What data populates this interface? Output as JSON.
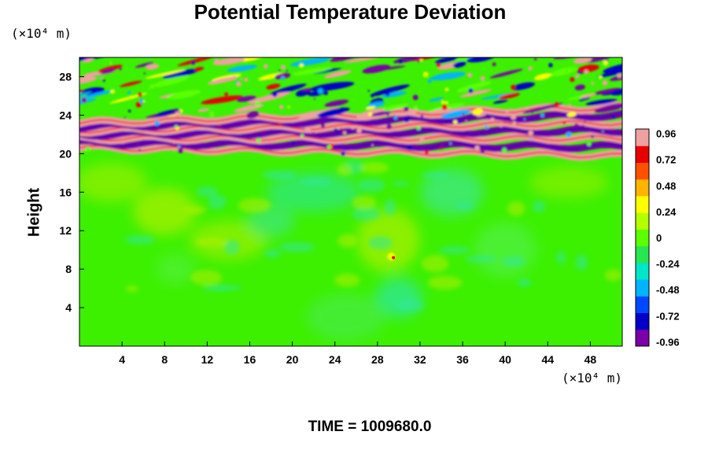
{
  "title": "Potential Temperature Deviation",
  "y_unit": "(×10⁴ m)",
  "x_unit": "(×10⁴ m)",
  "ylabel": "Height",
  "time_label": "TIME = 1009680.0",
  "chart_data": {
    "type": "heatmap",
    "title": "Potential Temperature Deviation",
    "xlabel": "",
    "ylabel": "Height",
    "x_unit": "×10⁴ m",
    "y_unit": "×10⁴ m",
    "xlim": [
      0,
      51
    ],
    "ylim": [
      0,
      30
    ],
    "x_ticks": [
      4,
      8,
      12,
      16,
      20,
      24,
      28,
      32,
      36,
      40,
      44,
      48
    ],
    "y_ticks": [
      4,
      8,
      12,
      16,
      20,
      24,
      28
    ],
    "colorbar": {
      "min": -1.0,
      "max": 1.0,
      "ticks": [
        0.96,
        0.72,
        0.48,
        0.24,
        0,
        -0.24,
        -0.48,
        -0.72,
        -0.96
      ],
      "colors": [
        "#7a00a8",
        "#0000c8",
        "#0048ff",
        "#00b4ff",
        "#00e6c8",
        "#28e650",
        "#5aff00",
        "#b4ff00",
        "#ffff00",
        "#ffb400",
        "#ff5000",
        "#e60000",
        "#f0a0a0"
      ]
    },
    "grid": false,
    "regions": [
      {
        "y_range": [
          0,
          20
        ],
        "dominant_value": 0,
        "description_value": "near-zero"
      },
      {
        "y_range": [
          20,
          30
        ],
        "dominant_value_range": [
          -0.96,
          0.96
        ]
      }
    ]
  }
}
